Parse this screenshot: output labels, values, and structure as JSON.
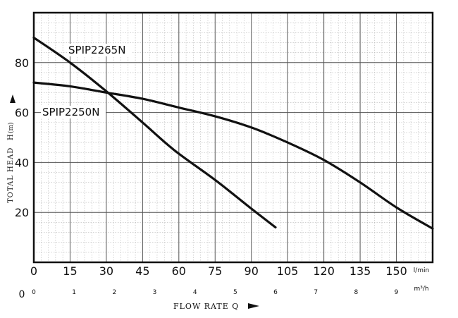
{
  "chart_data": {
    "type": "line",
    "title": "",
    "ylabel": "TOTAL HEAD",
    "ylabel_symbol": "H",
    "ylabel_unit": "(m)",
    "xlabel": "FLOW RATE Q",
    "grid": true,
    "ylim": [
      0,
      100
    ],
    "yticks": [
      20,
      40,
      60,
      80
    ],
    "y_zero_label": "0",
    "x_primary": {
      "unit": "l/min",
      "ticks": [
        0,
        15,
        30,
        45,
        60,
        75,
        90,
        105,
        120,
        135,
        150
      ],
      "lim": [
        0,
        165
      ]
    },
    "x_secondary": {
      "unit": "m³/h",
      "ticks": [
        0,
        1,
        2,
        3,
        4,
        5,
        6,
        7,
        8,
        9
      ],
      "lim": [
        0,
        9.9
      ]
    },
    "series": [
      {
        "name": "SPIP2265N",
        "x": [
          0,
          15,
          30,
          45,
          58,
          75,
          90,
          100
        ],
        "y": [
          90,
          80,
          68.5,
          56,
          45,
          33,
          21.5,
          14
        ]
      },
      {
        "name": "SPIP2250N",
        "x": [
          0,
          15,
          30,
          45,
          60,
          75,
          90,
          105,
          120,
          135,
          150,
          165
        ],
        "y": [
          72,
          70.5,
          68,
          65.5,
          62,
          58.5,
          54,
          48,
          41,
          32,
          22,
          13.5
        ]
      }
    ]
  }
}
